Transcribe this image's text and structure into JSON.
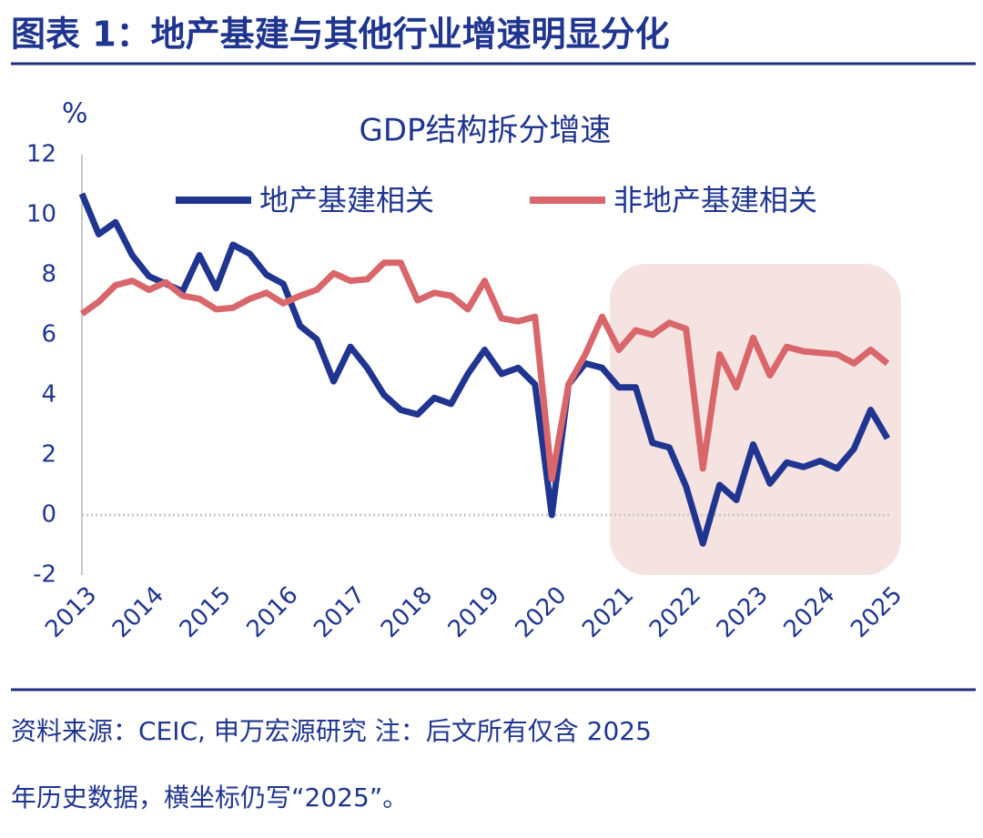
{
  "header": {
    "title": "图表 1：地产基建与其他行业增速明显分化"
  },
  "chart_data": {
    "type": "line",
    "title": "GDP结构拆分增速",
    "y_label": "%",
    "categories": [
      "2013",
      null,
      null,
      null,
      "2014",
      null,
      null,
      null,
      "2015",
      null,
      null,
      null,
      "2016",
      null,
      null,
      null,
      "2017",
      null,
      null,
      null,
      "2018",
      null,
      null,
      null,
      "2019",
      null,
      null,
      null,
      "2020",
      null,
      null,
      null,
      "2021",
      null,
      null,
      null,
      "2022",
      null,
      null,
      null,
      "2023",
      null,
      null,
      null,
      "2024",
      null,
      null,
      null,
      "2025"
    ],
    "series": [
      {
        "name": "地产基建相关",
        "color": "#1f3590",
        "values": [
          10.7,
          9.35,
          9.75,
          8.65,
          7.95,
          7.7,
          7.45,
          8.65,
          7.55,
          9.0,
          8.7,
          8.0,
          7.7,
          6.3,
          5.85,
          4.45,
          5.6,
          4.9,
          4.0,
          3.5,
          3.35,
          3.9,
          3.7,
          4.7,
          5.5,
          4.7,
          4.9,
          4.35,
          0.0,
          4.35,
          5.05,
          4.9,
          4.25,
          4.25,
          2.4,
          2.25,
          0.95,
          -0.95,
          1.0,
          0.5,
          2.35,
          1.05,
          1.75,
          1.6,
          1.8,
          1.55,
          2.2,
          3.5,
          2.55
        ]
      },
      {
        "name": "非地产基建相关",
        "color": "#d9666a",
        "values": [
          6.7,
          7.1,
          7.65,
          7.8,
          7.5,
          7.75,
          7.3,
          7.2,
          6.85,
          6.9,
          7.2,
          7.4,
          7.05,
          7.3,
          7.5,
          8.05,
          7.8,
          7.85,
          8.4,
          8.4,
          7.15,
          7.4,
          7.3,
          6.85,
          7.8,
          6.55,
          6.45,
          6.6,
          1.2,
          4.35,
          5.35,
          6.6,
          5.5,
          6.15,
          6.0,
          6.4,
          6.2,
          1.55,
          5.35,
          4.25,
          5.9,
          4.65,
          5.6,
          5.45,
          5.4,
          5.35,
          5.05,
          5.5,
          5.05
        ]
      }
    ],
    "ylim": [
      -2,
      12
    ],
    "yticks": [
      -2,
      0,
      2,
      4,
      6,
      8,
      10,
      12
    ]
  },
  "footer": {
    "lines": [
      "资料来源：CEIC, 申万宏源研究  注：后文所有仅含 2025",
      "年历史数据，横坐标仍写“2025”。"
    ]
  }
}
